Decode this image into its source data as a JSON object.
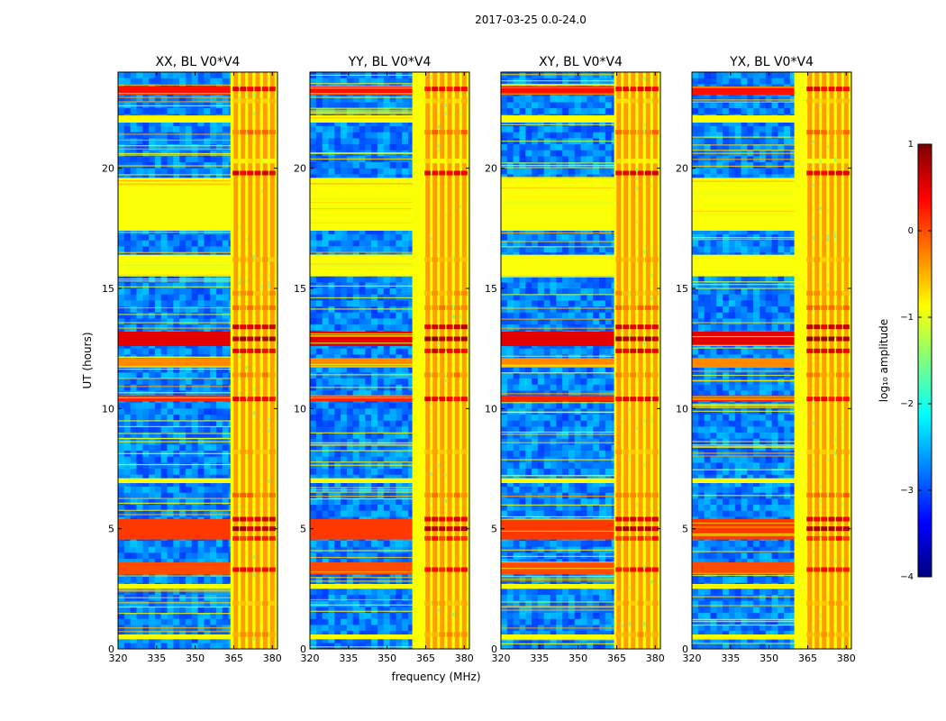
{
  "chart_data": {
    "type": "heatmap",
    "suptitle": "2017-03-25 0.0-24.0",
    "xlabel": "frequency (MHz)",
    "ylabel": "UT (hours)",
    "xlim": [
      320,
      382
    ],
    "ylim": [
      0,
      24
    ],
    "xticks": [
      320,
      335,
      350,
      365,
      380
    ],
    "yticks": [
      0,
      5,
      10,
      15,
      20
    ],
    "panels": [
      {
        "title": "XX, BL V0*V4",
        "rfi_band_start_mhz": 363.7
      },
      {
        "title": "YY, BL V0*V4",
        "rfi_band_start_mhz": 359.8
      },
      {
        "title": "XY, BL V0*V4",
        "rfi_band_start_mhz": 364.0
      },
      {
        "title": "YX, BL V0*V4",
        "rfi_band_start_mhz": 359.8
      }
    ],
    "colorbar": {
      "label": "log₁₀ amplitude",
      "vmin": -4,
      "vmax": 1,
      "ticks": [
        1,
        0,
        -1,
        -2,
        -3,
        -4
      ],
      "tick_labels": [
        "1",
        "0",
        "−1",
        "−2",
        "−3",
        "−4"
      ],
      "colors": [
        "#00007f",
        "#0000ff",
        "#007fff",
        "#00ffff",
        "#7fff7f",
        "#ffff00",
        "#ff7f00",
        "#ff0000",
        "#7f0000"
      ]
    },
    "rfi_channels_mhz": [
      365.8,
      368.6,
      371.4,
      374.3,
      377.2,
      380.0
    ],
    "rfi_time_hours": [
      {
        "t": 23.3,
        "v": 0.4
      },
      {
        "t": 22.8,
        "v": -0.6
      },
      {
        "t": 21.5,
        "v": -0.2
      },
      {
        "t": 20.3,
        "v": -0.8
      },
      {
        "t": 19.8,
        "v": 0.5
      },
      {
        "t": 16.2,
        "v": -0.5
      },
      {
        "t": 14.8,
        "v": -0.4
      },
      {
        "t": 14.2,
        "v": -0.2
      },
      {
        "t": 13.4,
        "v": 0.6
      },
      {
        "t": 12.9,
        "v": 0.8
      },
      {
        "t": 12.4,
        "v": 0.5
      },
      {
        "t": 11.4,
        "v": -0.3
      },
      {
        "t": 10.4,
        "v": 0.4
      },
      {
        "t": 8.2,
        "v": -0.5
      },
      {
        "t": 6.4,
        "v": -0.2
      },
      {
        "t": 5.4,
        "v": 0.5
      },
      {
        "t": 5.0,
        "v": 0.7
      },
      {
        "t": 4.6,
        "v": 0.2
      },
      {
        "t": 3.3,
        "v": 0.3
      },
      {
        "t": 1.9,
        "v": -0.5
      },
      {
        "t": 0.6,
        "v": -0.4
      }
    ],
    "flagged_rows_hours": [
      {
        "t0": 23.05,
        "t1": 23.4,
        "v": 0.3
      },
      {
        "t0": 21.9,
        "t1": 22.2,
        "v": -0.9
      },
      {
        "t0": 17.4,
        "t1": 19.6,
        "v": -0.9
      },
      {
        "t0": 15.5,
        "t1": 16.4,
        "v": -0.9
      },
      {
        "t0": 12.6,
        "t1": 13.2,
        "v": 0.5
      },
      {
        "t0": 11.7,
        "t1": 12.1,
        "v": -0.3
      },
      {
        "t0": 10.3,
        "t1": 10.55,
        "v": 0.2
      },
      {
        "t0": 6.9,
        "t1": 7.1,
        "v": -0.9
      },
      {
        "t0": 4.55,
        "t1": 5.4,
        "v": 0.1
      },
      {
        "t0": 3.1,
        "t1": 3.6,
        "v": 0.0
      },
      {
        "t0": 2.5,
        "t1": 2.7,
        "v": -0.9
      },
      {
        "t0": 0.4,
        "t1": 0.6,
        "v": -0.9
      }
    ],
    "background_level": -2.8
  }
}
